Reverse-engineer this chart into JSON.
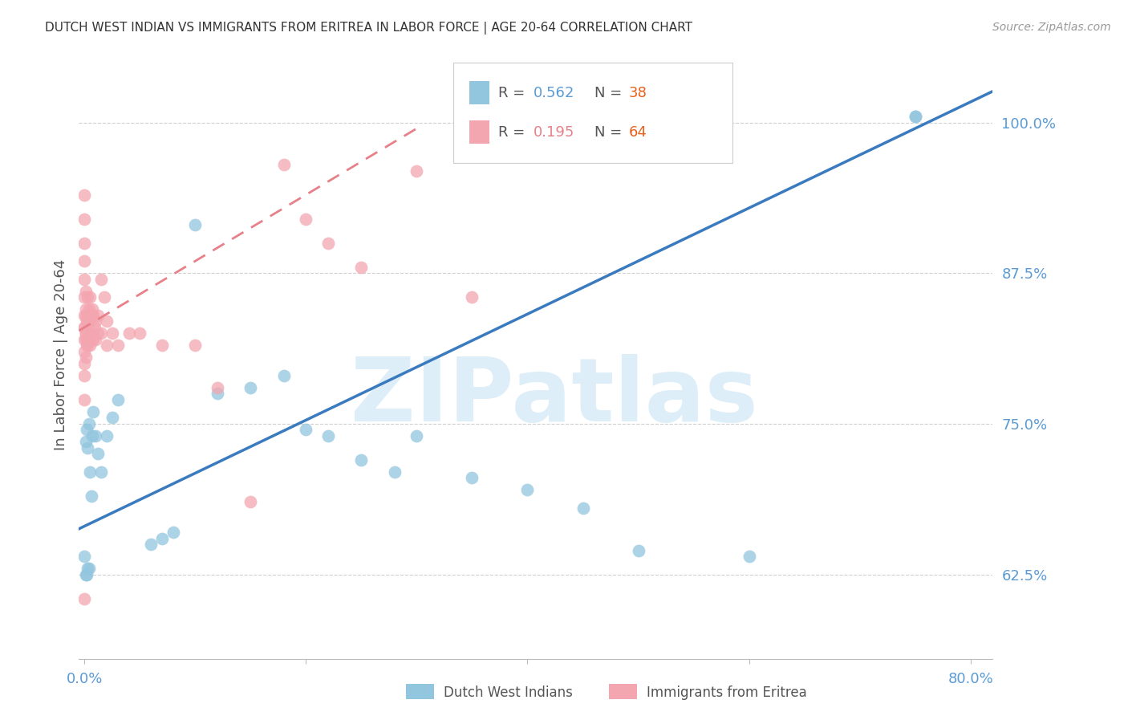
{
  "title": "DUTCH WEST INDIAN VS IMMIGRANTS FROM ERITREA IN LABOR FORCE | AGE 20-64 CORRELATION CHART",
  "source": "Source: ZipAtlas.com",
  "ylabel": "In Labor Force | Age 20-64",
  "watermark": "ZIPatlas",
  "y_ticks": [
    0.625,
    0.75,
    0.875,
    1.0
  ],
  "y_tick_labels": [
    "62.5%",
    "75.0%",
    "87.5%",
    "100.0%"
  ],
  "xlim": [
    -0.005,
    0.82
  ],
  "ylim": [
    0.555,
    1.06
  ],
  "blue_R": 0.562,
  "blue_N": 38,
  "pink_R": 0.195,
  "pink_N": 64,
  "blue_color": "#92c5de",
  "pink_color": "#f4a6b0",
  "blue_line_color": "#3a7abf",
  "pink_line_color": "#e8808a",
  "legend_label_blue": "Dutch West Indians",
  "legend_label_pink": "Immigrants from Eritrea",
  "blue_x": [
    0.001,
    0.002,
    0.003,
    0.004,
    0.005,
    0.006,
    0.007,
    0.008,
    0.01,
    0.012,
    0.015,
    0.02,
    0.025,
    0.03,
    0.06,
    0.07,
    0.08,
    0.1,
    0.12,
    0.15,
    0.18,
    0.2,
    0.22,
    0.25,
    0.28,
    0.3,
    0.35,
    0.4,
    0.45,
    0.5,
    0.6,
    0.75,
    0.75,
    0.0,
    0.001,
    0.002,
    0.003,
    0.004
  ],
  "blue_y": [
    0.735,
    0.745,
    0.73,
    0.75,
    0.71,
    0.69,
    0.74,
    0.76,
    0.74,
    0.725,
    0.71,
    0.74,
    0.755,
    0.77,
    0.65,
    0.655,
    0.66,
    0.915,
    0.775,
    0.78,
    0.79,
    0.745,
    0.74,
    0.72,
    0.71,
    0.74,
    0.705,
    0.695,
    0.68,
    0.645,
    0.64,
    1.005,
    1.005,
    0.64,
    0.625,
    0.625,
    0.63,
    0.63
  ],
  "pink_x": [
    0.0,
    0.0,
    0.0,
    0.0,
    0.0,
    0.0,
    0.0,
    0.0,
    0.0,
    0.0,
    0.001,
    0.001,
    0.001,
    0.001,
    0.001,
    0.001,
    0.002,
    0.002,
    0.002,
    0.002,
    0.003,
    0.003,
    0.003,
    0.004,
    0.004,
    0.005,
    0.005,
    0.005,
    0.006,
    0.006,
    0.007,
    0.007,
    0.008,
    0.008,
    0.009,
    0.01,
    0.01,
    0.012,
    0.012,
    0.015,
    0.015,
    0.018,
    0.02,
    0.02,
    0.025,
    0.03,
    0.04,
    0.05,
    0.07,
    0.1,
    0.12,
    0.15,
    0.18,
    0.2,
    0.22,
    0.25,
    0.3,
    0.35,
    0.0,
    0.0,
    0.0,
    0.0,
    0.0,
    0.001
  ],
  "pink_y": [
    0.82,
    0.84,
    0.855,
    0.87,
    0.885,
    0.9,
    0.92,
    0.94,
    0.81,
    0.83,
    0.82,
    0.84,
    0.86,
    0.805,
    0.825,
    0.845,
    0.82,
    0.84,
    0.815,
    0.835,
    0.815,
    0.835,
    0.855,
    0.825,
    0.845,
    0.815,
    0.835,
    0.855,
    0.82,
    0.84,
    0.825,
    0.845,
    0.82,
    0.84,
    0.83,
    0.82,
    0.835,
    0.825,
    0.84,
    0.825,
    0.87,
    0.855,
    0.815,
    0.835,
    0.825,
    0.815,
    0.825,
    0.825,
    0.815,
    0.815,
    0.78,
    0.685,
    0.965,
    0.92,
    0.9,
    0.88,
    0.96,
    0.855,
    0.79,
    0.77,
    0.8,
    0.83,
    0.605,
    0.825
  ],
  "grid_color": "#d0d0d0",
  "bg_color": "#ffffff",
  "title_fontsize": 11,
  "tick_label_color": "#5b9bd5",
  "axis_color": "#5b9bd5",
  "N_color": "#e8601c",
  "R_blue_color": "#5b9bd5",
  "R_pink_color": "#e8808a"
}
